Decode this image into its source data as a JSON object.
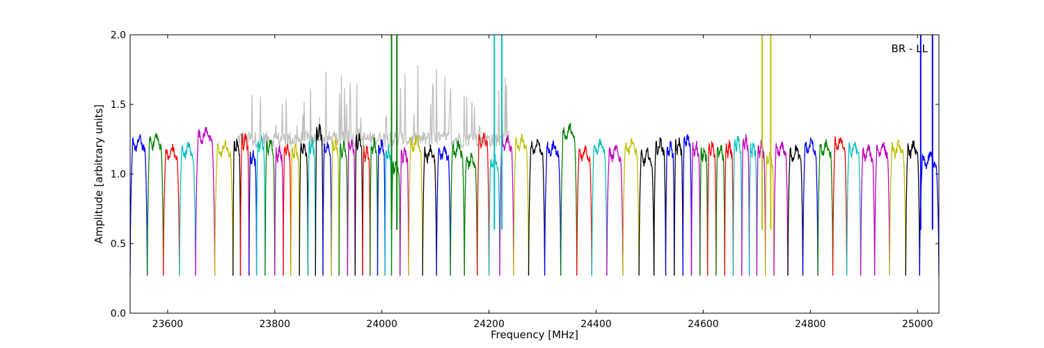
{
  "chart_data": {
    "type": "line",
    "title": "",
    "xlabel": "Frequency [MHz]",
    "ylabel": "Amplitude [arbitrary units]",
    "xlim": [
      23530,
      25040
    ],
    "ylim": [
      0.0,
      2.0
    ],
    "xticks": [
      23600,
      23800,
      24000,
      24200,
      24400,
      24600,
      24800,
      25000
    ],
    "yticks": [
      0.0,
      0.5,
      1.0,
      1.5,
      2.0
    ],
    "ytick_labels": [
      "0.0",
      "0.5",
      "1.0",
      "1.5",
      "2.0"
    ],
    "grid": false,
    "legend": "none",
    "annotation": {
      "text": "BR - LL",
      "position": "top-right"
    },
    "colors": {
      "background_series": "#bfbfbf",
      "cycle": [
        "#0000ff",
        "#008000",
        "#ff0000",
        "#00bfbf",
        "#bf00bf",
        "#bfbf00",
        "#000000"
      ]
    },
    "background_series": {
      "description_range": [
        23730,
        24240
      ],
      "base": 1.25,
      "peak_max": 1.75
    },
    "bands": [
      {
        "x0": 23530,
        "x1": 23562,
        "level": 1.22,
        "color": "#0000ff"
      },
      {
        "x0": 23562,
        "x1": 23592,
        "level": 1.24,
        "color": "#008000"
      },
      {
        "x0": 23592,
        "x1": 23622,
        "level": 1.15,
        "color": "#ff0000"
      },
      {
        "x0": 23622,
        "x1": 23652,
        "level": 1.17,
        "color": "#00bfbf"
      },
      {
        "x0": 23652,
        "x1": 23688,
        "level": 1.28,
        "color": "#bf00bf"
      },
      {
        "x0": 23688,
        "x1": 23722,
        "level": 1.18,
        "color": "#bfbf00"
      },
      {
        "x0": 23722,
        "x1": 23736,
        "level": 1.2,
        "color": "#000000"
      },
      {
        "x0": 23736,
        "x1": 23752,
        "level": 1.24,
        "color": "#ff0000"
      },
      {
        "x0": 23752,
        "x1": 23766,
        "level": 1.12,
        "color": "#0000ff"
      },
      {
        "x0": 23766,
        "x1": 23782,
        "level": 1.22,
        "color": "#00bfbf"
      },
      {
        "x0": 23782,
        "x1": 23800,
        "level": 1.2,
        "color": "#008000"
      },
      {
        "x0": 23800,
        "x1": 23816,
        "level": 1.15,
        "color": "#bf00bf"
      },
      {
        "x0": 23816,
        "x1": 23830,
        "level": 1.18,
        "color": "#ff0000"
      },
      {
        "x0": 23830,
        "x1": 23846,
        "level": 1.16,
        "color": "#bfbf00"
      },
      {
        "x0": 23846,
        "x1": 23862,
        "level": 1.18,
        "color": "#000000"
      },
      {
        "x0": 23862,
        "x1": 23876,
        "level": 1.2,
        "color": "#00bfbf"
      },
      {
        "x0": 23876,
        "x1": 23890,
        "level": 1.3,
        "color": "#000000"
      },
      {
        "x0": 23890,
        "x1": 23906,
        "level": 1.18,
        "color": "#0000ff"
      },
      {
        "x0": 23906,
        "x1": 23920,
        "level": 1.2,
        "color": "#bfbf00"
      },
      {
        "x0": 23920,
        "x1": 23936,
        "level": 1.18,
        "color": "#008000"
      },
      {
        "x0": 23936,
        "x1": 23950,
        "level": 1.2,
        "color": "#bf00bf"
      },
      {
        "x0": 23950,
        "x1": 23964,
        "level": 1.24,
        "color": "#000000"
      },
      {
        "x0": 23964,
        "x1": 23978,
        "level": 1.15,
        "color": "#ff0000"
      },
      {
        "x0": 23978,
        "x1": 23992,
        "level": 1.2,
        "color": "#008000"
      },
      {
        "x0": 23992,
        "x1": 24006,
        "level": 1.2,
        "color": "#0000ff"
      },
      {
        "x0": 24006,
        "x1": 24018,
        "level": 1.15,
        "color": "#00bfbf"
      },
      {
        "x0": 24018,
        "x1": 24034,
        "level": 1.05,
        "color": "#008000"
      },
      {
        "x0": 24034,
        "x1": 24050,
        "level": 1.14,
        "color": "#bf00bf"
      },
      {
        "x0": 24050,
        "x1": 24076,
        "level": 1.22,
        "color": "#bfbf00"
      },
      {
        "x0": 24076,
        "x1": 24102,
        "level": 1.15,
        "color": "#000000"
      },
      {
        "x0": 24102,
        "x1": 24128,
        "level": 1.15,
        "color": "#0000ff"
      },
      {
        "x0": 24128,
        "x1": 24154,
        "level": 1.18,
        "color": "#008000"
      },
      {
        "x0": 24154,
        "x1": 24178,
        "level": 1.1,
        "color": "#008000"
      },
      {
        "x0": 24178,
        "x1": 24200,
        "level": 1.25,
        "color": "#ff0000"
      },
      {
        "x0": 24200,
        "x1": 24220,
        "level": 1.08,
        "color": "#00bfbf"
      },
      {
        "x0": 24220,
        "x1": 24246,
        "level": 1.22,
        "color": "#bf00bf"
      },
      {
        "x0": 24246,
        "x1": 24274,
        "level": 1.22,
        "color": "#bfbf00"
      },
      {
        "x0": 24274,
        "x1": 24304,
        "level": 1.2,
        "color": "#000000"
      },
      {
        "x0": 24304,
        "x1": 24334,
        "level": 1.18,
        "color": "#0000ff"
      },
      {
        "x0": 24334,
        "x1": 24364,
        "level": 1.3,
        "color": "#008000"
      },
      {
        "x0": 24364,
        "x1": 24392,
        "level": 1.15,
        "color": "#ff0000"
      },
      {
        "x0": 24392,
        "x1": 24420,
        "level": 1.2,
        "color": "#00bfbf"
      },
      {
        "x0": 24420,
        "x1": 24450,
        "level": 1.15,
        "color": "#bf00bf"
      },
      {
        "x0": 24450,
        "x1": 24480,
        "level": 1.2,
        "color": "#bfbf00"
      },
      {
        "x0": 24480,
        "x1": 24508,
        "level": 1.12,
        "color": "#000000"
      },
      {
        "x0": 24508,
        "x1": 24530,
        "level": 1.2,
        "color": "#000000"
      },
      {
        "x0": 24530,
        "x1": 24546,
        "level": 1.18,
        "color": "#0000ff"
      },
      {
        "x0": 24546,
        "x1": 24562,
        "level": 1.2,
        "color": "#000000"
      },
      {
        "x0": 24562,
        "x1": 24578,
        "level": 1.24,
        "color": "#0000ff"
      },
      {
        "x0": 24578,
        "x1": 24594,
        "level": 1.18,
        "color": "#bf00bf"
      },
      {
        "x0": 24594,
        "x1": 24608,
        "level": 1.15,
        "color": "#008000"
      },
      {
        "x0": 24608,
        "x1": 24624,
        "level": 1.18,
        "color": "#ff0000"
      },
      {
        "x0": 24624,
        "x1": 24640,
        "level": 1.16,
        "color": "#008000"
      },
      {
        "x0": 24640,
        "x1": 24656,
        "level": 1.18,
        "color": "#ff0000"
      },
      {
        "x0": 24656,
        "x1": 24672,
        "level": 1.22,
        "color": "#00bfbf"
      },
      {
        "x0": 24672,
        "x1": 24686,
        "level": 1.22,
        "color": "#bf00bf"
      },
      {
        "x0": 24686,
        "x1": 24700,
        "level": 1.18,
        "color": "#00bfbf"
      },
      {
        "x0": 24700,
        "x1": 24716,
        "level": 1.18,
        "color": "#bf00bf"
      },
      {
        "x0": 24716,
        "x1": 24732,
        "level": 1.1,
        "color": "#bfbf00"
      },
      {
        "x0": 24732,
        "x1": 24758,
        "level": 1.18,
        "color": "#bf00bf"
      },
      {
        "x0": 24758,
        "x1": 24786,
        "level": 1.15,
        "color": "#000000"
      },
      {
        "x0": 24786,
        "x1": 24814,
        "level": 1.2,
        "color": "#0000ff"
      },
      {
        "x0": 24814,
        "x1": 24842,
        "level": 1.18,
        "color": "#008000"
      },
      {
        "x0": 24842,
        "x1": 24868,
        "level": 1.22,
        "color": "#ff0000"
      },
      {
        "x0": 24868,
        "x1": 24894,
        "level": 1.18,
        "color": "#00bfbf"
      },
      {
        "x0": 24894,
        "x1": 24920,
        "level": 1.15,
        "color": "#bf00bf"
      },
      {
        "x0": 24920,
        "x1": 24948,
        "level": 1.18,
        "color": "#bf00bf"
      },
      {
        "x0": 24948,
        "x1": 24978,
        "level": 1.18,
        "color": "#bfbf00"
      },
      {
        "x0": 24978,
        "x1": 25004,
        "level": 1.18,
        "color": "#000000"
      },
      {
        "x0": 25004,
        "x1": 25040,
        "level": 1.1,
        "color": "#0000ff"
      }
    ],
    "spikes": [
      {
        "x": 24018,
        "color": "#008000"
      },
      {
        "x": 24028,
        "color": "#008000"
      },
      {
        "x": 24210,
        "color": "#00bfbf"
      },
      {
        "x": 24224,
        "color": "#00bfbf"
      },
      {
        "x": 24710,
        "color": "#bfbf00"
      },
      {
        "x": 24726,
        "color": "#bfbf00"
      },
      {
        "x": 25006,
        "color": "#0000ff"
      },
      {
        "x": 25028,
        "color": "#0000ff"
      }
    ]
  }
}
